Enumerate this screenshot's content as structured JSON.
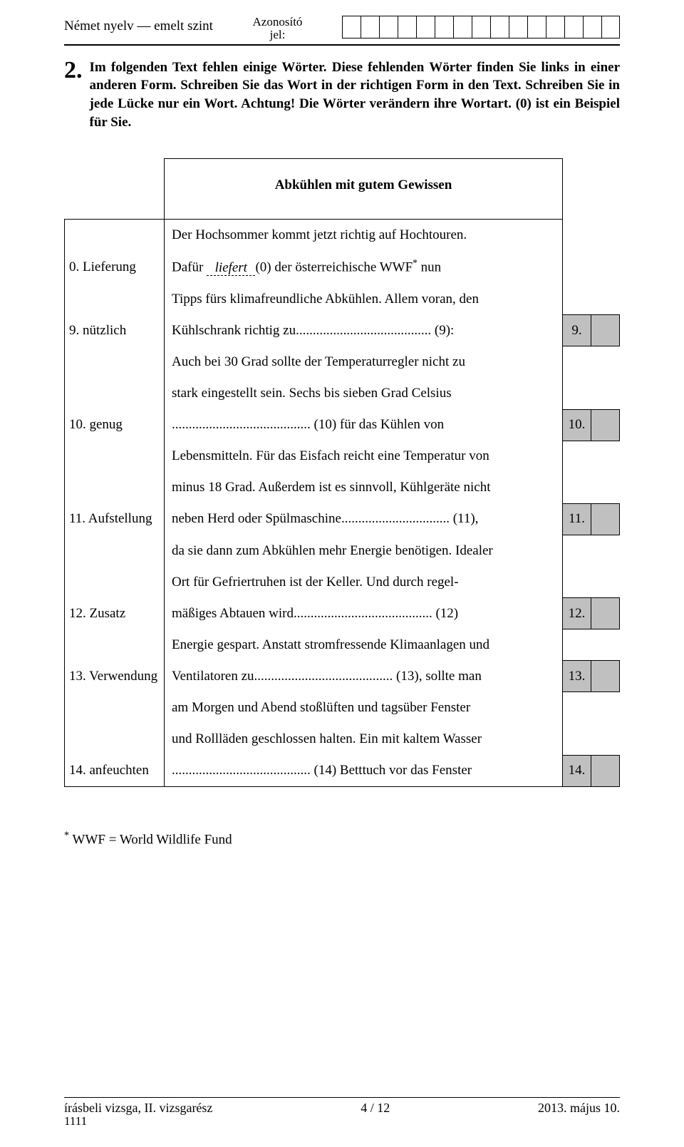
{
  "header": {
    "left": "Német nyelv — emelt szint",
    "center_l1": "Azonosító",
    "center_l2": "jel:",
    "id_box_count": 15
  },
  "instr": {
    "num": "2.",
    "text": "Im folgenden Text fehlen einige Wörter. Diese fehlenden Wörter finden Sie links in einer anderen Form. Schreiben Sie das Wort in der richtigen Form in den Text. Schreiben Sie in jede Lücke nur ein Wort. Achtung! Die Wörter verändern ihre Wortart. (0) ist ein Beispiel für Sie."
  },
  "title": "Abkühlen mit gutem Gewissen",
  "rows": [
    {
      "left": "",
      "body_html": "Der Hochsommer kommt jetzt richtig auf Hochtouren."
    },
    {
      "left": "0. Lieferung",
      "body_html": "Dafür <span class=\"liefert\">&nbsp;&nbsp;liefert&nbsp;&nbsp;</span>(0) der österreichische WWF<sup class=\"ast\">*</sup> nun"
    },
    {
      "left": "",
      "body_html": "Tipps fürs klimafreundliche Abkühlen. Allem voran, den"
    },
    {
      "left": "9. nützlich",
      "body_html": "Kühlschrank richtig zu........................................ (9):",
      "score": "9."
    },
    {
      "left": "",
      "body_html": "Auch bei 30 Grad sollte der Temperaturregler nicht zu"
    },
    {
      "left": "",
      "body_html": "stark eingestellt sein. Sechs bis sieben Grad Celsius"
    },
    {
      "left": "10. genug",
      "body_html": "......................................... (10) für das Kühlen von",
      "score": "10."
    },
    {
      "left": "",
      "body_html": "Lebensmitteln. Für das Eisfach reicht eine Temperatur von"
    },
    {
      "left": "",
      "body_html": "minus 18 Grad. Außerdem ist es sinnvoll, Kühlgeräte nicht"
    },
    {
      "left": "11. Aufstellung",
      "body_html": "neben Herd oder Spülmaschine................................ (11),",
      "score": "11."
    },
    {
      "left": "",
      "body_html": "da sie dann zum Abkühlen mehr Energie benötigen. Idealer"
    },
    {
      "left": "",
      "body_html": "Ort für Gefriertruhen ist der Keller. Und durch regel-"
    },
    {
      "left": "12. Zusatz",
      "body_html": "mäßiges Abtauen wird......................................... (12)",
      "score": "12."
    },
    {
      "left": "",
      "body_html": "Energie gespart. Anstatt stromfressende Klimaanlagen und"
    },
    {
      "left": "13. Verwendung",
      "body_html": "Ventilatoren zu......................................... (13), sollte man",
      "score": "13."
    },
    {
      "left": "",
      "body_html": "am Morgen und Abend stoßlüften und tagsüber Fenster"
    },
    {
      "left": "",
      "body_html": "und Rollläden geschlossen halten. Ein mit kaltem Wasser"
    },
    {
      "left": "14. anfeuchten",
      "body_html": "......................................... (14) Betttuch vor das Fenster",
      "score": "14.",
      "last": true
    }
  ],
  "footnote": "WWF = World Wildlife Fund",
  "footer": {
    "left": "írásbeli vizsga, II. vizsgarész",
    "center": "4 / 12",
    "right": "2013. május 10.",
    "code": "1111"
  },
  "colors": {
    "score_bg": "#c0c0c0",
    "text": "#000000",
    "page_bg": "#ffffff"
  }
}
